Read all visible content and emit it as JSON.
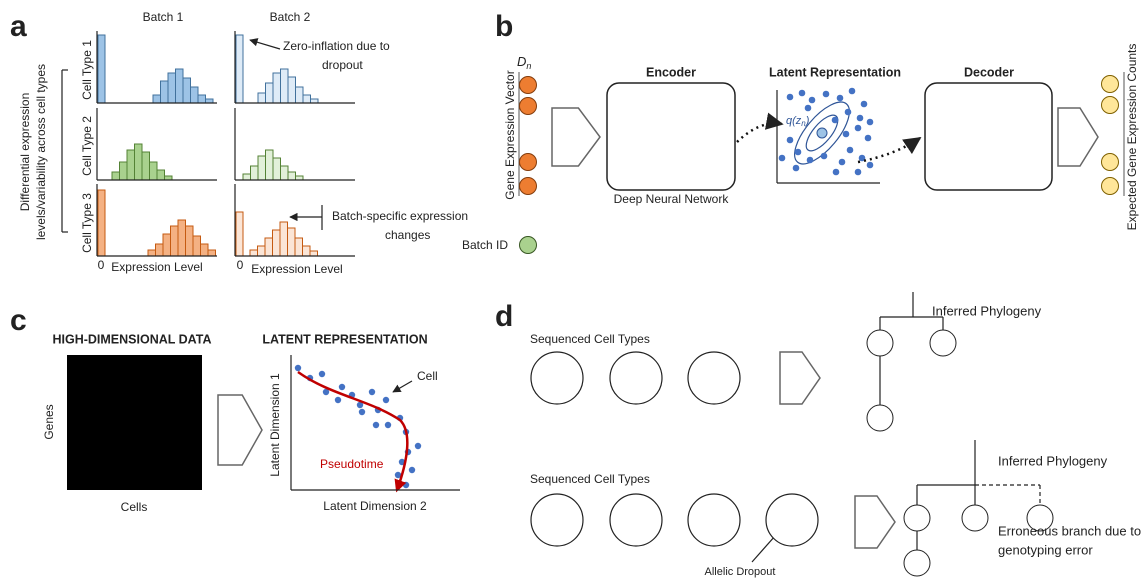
{
  "panel_a": {
    "label": "a",
    "columns": [
      "Batch 1",
      "Batch 2"
    ],
    "rows": [
      "Cell Type 1",
      "Cell Type 2",
      "Cell Type 3"
    ],
    "side_label": [
      "Differential expression",
      "levels/variability across cell types"
    ],
    "axis_zero": [
      "0",
      "0"
    ],
    "x_labels": [
      "Expression Level",
      "Expression Level"
    ],
    "annotations": [
      [
        "Zero-inflation due to",
        "dropout"
      ],
      [
        "Batch-specific expression",
        "changes"
      ]
    ]
  },
  "panel_b": {
    "label": "b",
    "input_symbol": "D",
    "input_subscript": "n",
    "input_label": "Gene Expression Vector",
    "batch_label": "Batch ID",
    "encoder_title": "Encoder",
    "encoder_caption": "Deep Neural Network",
    "latent_title": "Latent Representation",
    "latent_symbol": [
      "q(z",
      "n",
      ")"
    ],
    "decoder_title": "Decoder",
    "output_label": "Expected Gene Expression Counts"
  },
  "panel_c": {
    "label": "c",
    "data_title": "HIGH-DIMENSIONAL DATA",
    "rows_label": "Genes",
    "cols_label": "Cells",
    "latent_title": "LATENT REPRESENTATION",
    "y_label": "Latent Dimension 1",
    "x_label": "Latent Dimension 2",
    "point_label": "Cell",
    "curve_label": "Pseudotime"
  },
  "panel_d": {
    "label": "d",
    "scenarios": [
      {
        "heading": "Sequenced Cell Types",
        "tree_title": "Inferred Phylogeny"
      },
      {
        "heading": "Sequenced Cell Types",
        "tree_title": "Inferred Phylogeny",
        "dropout_label": "Allelic Dropout",
        "error_note": [
          "Erroneous branch due to",
          "genotyping error"
        ]
      }
    ]
  }
}
